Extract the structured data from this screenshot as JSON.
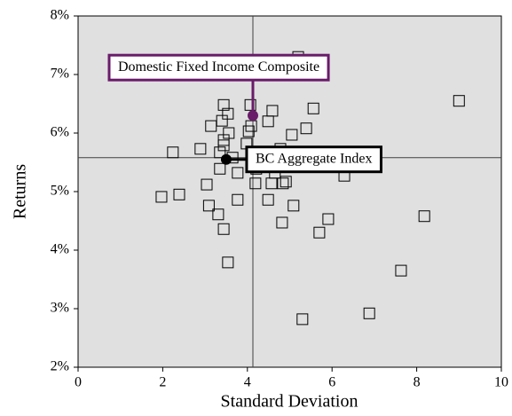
{
  "chart_data": {
    "type": "scatter",
    "x_label": "Standard Deviation",
    "y_label": "Returns",
    "xlim": [
      0,
      10
    ],
    "xticks": [
      0,
      2,
      4,
      6,
      8,
      10
    ],
    "ylim": [
      2,
      8
    ],
    "yticks": [
      {
        "value": 2,
        "label": "2%"
      },
      {
        "value": 3,
        "label": "3%"
      },
      {
        "value": 4,
        "label": "4%"
      },
      {
        "value": 5,
        "label": "5%"
      },
      {
        "value": 6,
        "label": "6%"
      },
      {
        "value": 7,
        "label": "7%"
      },
      {
        "value": 8,
        "label": "8%"
      }
    ],
    "plot_background": "#e0e0e0",
    "points": {
      "color": "#000000",
      "x": [
        5.2,
        9.0,
        3.44,
        4.07,
        3.54,
        4.59,
        5.56,
        4.49,
        3.4,
        3.14,
        5.39,
        3.56,
        4.03,
        4.09,
        5.05,
        2.89,
        3.44,
        3.98,
        2.24,
        4.78,
        3.35,
        3.44,
        3.65,
        3.35,
        3.77,
        4.19,
        3.04,
        4.57,
        4.84,
        4.21,
        4.65,
        6.29,
        1.97,
        2.39,
        3.09,
        3.77,
        4.49,
        5.09,
        3.31,
        4.82,
        5.91,
        8.18,
        3.44,
        5.7,
        3.54,
        7.63,
        5.3,
        6.88,
        4.91
      ],
      "y": [
        7.3,
        6.55,
        6.48,
        6.48,
        6.33,
        6.38,
        6.42,
        6.2,
        6.21,
        6.12,
        6.08,
        6.0,
        6.03,
        6.12,
        5.97,
        5.73,
        5.88,
        5.82,
        5.67,
        5.73,
        5.67,
        5.79,
        5.58,
        5.39,
        5.32,
        5.14,
        5.12,
        5.14,
        5.14,
        5.39,
        5.32,
        5.27,
        4.91,
        4.95,
        4.76,
        4.86,
        4.86,
        4.76,
        4.61,
        4.47,
        4.53,
        4.58,
        4.36,
        4.3,
        3.79,
        3.65,
        2.82,
        2.92,
        5.17
      ]
    },
    "reference_lines": {
      "x": 4.13,
      "y": 5.58,
      "color": "#404040"
    },
    "highlights": [
      {
        "name": "Domestic Fixed Income Composite",
        "x": 4.13,
        "y": 6.3,
        "color": "#6a1b6a"
      },
      {
        "name": "BC Aggregate Index",
        "x": 3.5,
        "y": 5.55,
        "color": "#000000"
      }
    ]
  }
}
